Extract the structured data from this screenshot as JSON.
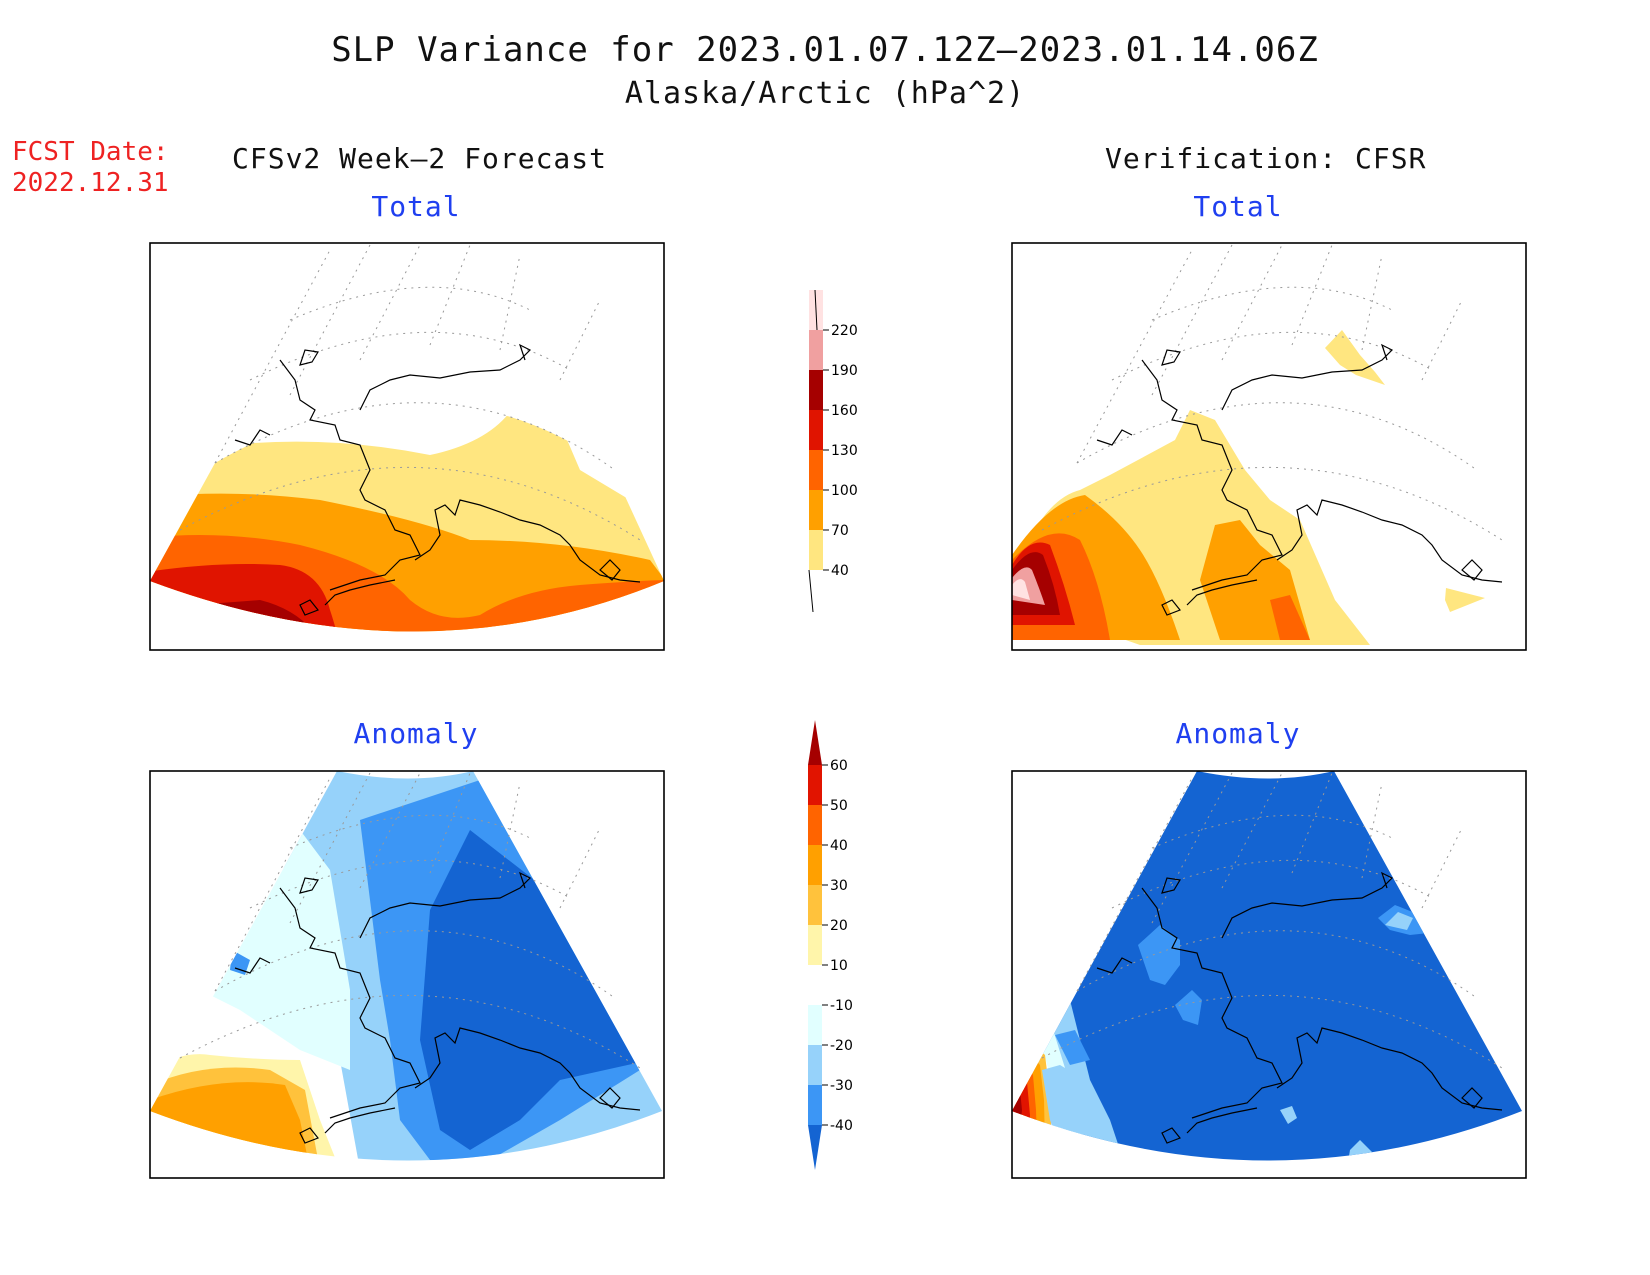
{
  "title": {
    "line1": "SLP Variance for 2023.01.07.12Z–2023.01.14.06Z",
    "line2": "Alaska/Arctic (hPa^2)"
  },
  "forecast_date": {
    "label": "FCST Date:",
    "value": "2022.12.31"
  },
  "columns": {
    "left": "CFSv2 Week–2 Forecast",
    "right": "Verification: CFSR"
  },
  "panels": {
    "forecast_total": "Total",
    "verification_total": "Total",
    "forecast_anomaly": "Anomaly",
    "verification_anomaly": "Anomaly"
  },
  "colorbars": {
    "total": {
      "labels": [
        "40",
        "70",
        "100",
        "130",
        "160",
        "190",
        "220"
      ],
      "colors": [
        "#ffe680",
        "#ffa000",
        "#ff6400",
        "#e01400",
        "#a50000",
        "#f0a0a0",
        "#ffe2e2"
      ]
    },
    "anomaly": {
      "labels": [
        "-40",
        "-30",
        "-20",
        "-10",
        "10",
        "20",
        "30",
        "40",
        "50",
        "60"
      ],
      "colors": [
        "#1464d2",
        "#3c96f5",
        "#96d2fa",
        "#e1ffff",
        "#ffffff",
        "#fff5aa",
        "#ffc23c",
        "#ffa000",
        "#ff6400",
        "#e11400",
        "#a50000"
      ]
    }
  }
}
